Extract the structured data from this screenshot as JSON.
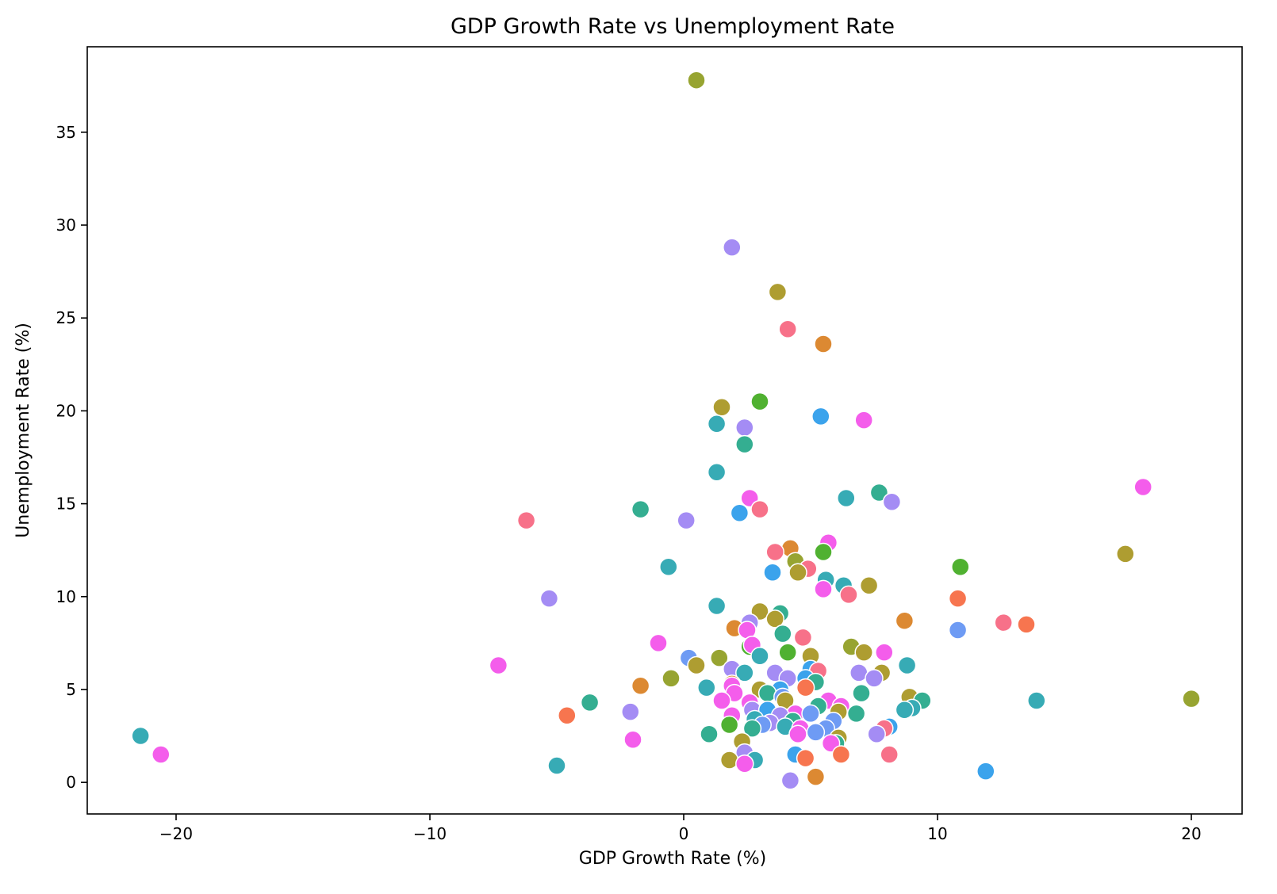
{
  "chart_data": {
    "type": "scatter",
    "title": "GDP Growth Rate vs Unemployment Rate",
    "xlabel": "GDP Growth Rate (%)",
    "ylabel": "Unemployment Rate (%)",
    "xlim": [
      -23.5,
      22.0
    ],
    "ylim": [
      -1.7,
      39.6
    ],
    "x_ticks": [
      -20,
      -10,
      0,
      10,
      20
    ],
    "x_tick_labels": [
      "−20",
      "−10",
      "0",
      "10",
      "20"
    ],
    "y_ticks": [
      0,
      5,
      10,
      15,
      20,
      25,
      30,
      35
    ],
    "y_tick_labels": [
      "0",
      "5",
      "10",
      "15",
      "20",
      "25",
      "30",
      "35"
    ],
    "grid": false,
    "legend": "none",
    "palette": [
      "#f77189",
      "#f7754f",
      "#dc8932",
      "#ae9d31",
      "#97a431",
      "#50b131",
      "#34ae91",
      "#37abb5",
      "#3ba3ec",
      "#6e9bf4",
      "#a48cf4",
      "#f45deb"
    ],
    "points": [
      {
        "x": 0.5,
        "y": 37.8,
        "c": 4
      },
      {
        "x": 1.9,
        "y": 28.8,
        "c": 10
      },
      {
        "x": 3.7,
        "y": 26.4,
        "c": 3
      },
      {
        "x": 4.1,
        "y": 24.4,
        "c": 0
      },
      {
        "x": 5.5,
        "y": 23.6,
        "c": 2
      },
      {
        "x": 1.5,
        "y": 20.2,
        "c": 3
      },
      {
        "x": 3.0,
        "y": 20.5,
        "c": 5
      },
      {
        "x": 5.4,
        "y": 19.7,
        "c": 8
      },
      {
        "x": 7.1,
        "y": 19.5,
        "c": 11
      },
      {
        "x": 1.3,
        "y": 19.3,
        "c": 7
      },
      {
        "x": 2.4,
        "y": 19.1,
        "c": 10
      },
      {
        "x": 2.4,
        "y": 18.2,
        "c": 6
      },
      {
        "x": 1.3,
        "y": 16.7,
        "c": 7
      },
      {
        "x": 18.1,
        "y": 15.9,
        "c": 11
      },
      {
        "x": 7.7,
        "y": 15.6,
        "c": 6
      },
      {
        "x": 8.2,
        "y": 15.1,
        "c": 10
      },
      {
        "x": 6.4,
        "y": 15.3,
        "c": 7
      },
      {
        "x": 2.6,
        "y": 15.3,
        "c": 11
      },
      {
        "x": 3.0,
        "y": 14.7,
        "c": 0
      },
      {
        "x": 2.2,
        "y": 14.5,
        "c": 8
      },
      {
        "x": -1.7,
        "y": 14.7,
        "c": 6
      },
      {
        "x": 0.1,
        "y": 14.1,
        "c": 10
      },
      {
        "x": -6.2,
        "y": 14.1,
        "c": 0
      },
      {
        "x": 5.7,
        "y": 12.9,
        "c": 11
      },
      {
        "x": 4.2,
        "y": 12.6,
        "c": 2
      },
      {
        "x": 3.6,
        "y": 12.4,
        "c": 0
      },
      {
        "x": 5.5,
        "y": 12.4,
        "c": 5
      },
      {
        "x": 17.4,
        "y": 12.3,
        "c": 3
      },
      {
        "x": 4.4,
        "y": 11.9,
        "c": 4
      },
      {
        "x": 10.9,
        "y": 11.6,
        "c": 5
      },
      {
        "x": -0.6,
        "y": 11.6,
        "c": 7
      },
      {
        "x": 4.9,
        "y": 11.5,
        "c": 0
      },
      {
        "x": 3.5,
        "y": 11.3,
        "c": 8
      },
      {
        "x": 4.5,
        "y": 11.3,
        "c": 3
      },
      {
        "x": 5.6,
        "y": 10.9,
        "c": 7
      },
      {
        "x": 6.3,
        "y": 10.6,
        "c": 7
      },
      {
        "x": 7.3,
        "y": 10.6,
        "c": 3
      },
      {
        "x": 5.5,
        "y": 10.4,
        "c": 11
      },
      {
        "x": 6.5,
        "y": 10.1,
        "c": 0
      },
      {
        "x": -5.3,
        "y": 9.9,
        "c": 10
      },
      {
        "x": 10.8,
        "y": 9.9,
        "c": 1
      },
      {
        "x": 1.3,
        "y": 9.5,
        "c": 7
      },
      {
        "x": 3.0,
        "y": 9.2,
        "c": 3
      },
      {
        "x": 3.8,
        "y": 9.1,
        "c": 6
      },
      {
        "x": 3.6,
        "y": 8.8,
        "c": 3
      },
      {
        "x": 8.7,
        "y": 8.7,
        "c": 2
      },
      {
        "x": 2.6,
        "y": 8.6,
        "c": 10
      },
      {
        "x": 12.6,
        "y": 8.6,
        "c": 0
      },
      {
        "x": 13.5,
        "y": 8.5,
        "c": 1
      },
      {
        "x": 2.0,
        "y": 8.3,
        "c": 2
      },
      {
        "x": 2.5,
        "y": 8.2,
        "c": 11
      },
      {
        "x": 10.8,
        "y": 8.2,
        "c": 9
      },
      {
        "x": 3.9,
        "y": 8.0,
        "c": 6
      },
      {
        "x": 4.7,
        "y": 7.8,
        "c": 0
      },
      {
        "x": -1.0,
        "y": 7.5,
        "c": 11
      },
      {
        "x": 2.6,
        "y": 7.3,
        "c": 5
      },
      {
        "x": 2.7,
        "y": 7.4,
        "c": 11
      },
      {
        "x": 6.6,
        "y": 7.3,
        "c": 4
      },
      {
        "x": 4.1,
        "y": 7.0,
        "c": 5
      },
      {
        "x": 7.1,
        "y": 7.0,
        "c": 3
      },
      {
        "x": 7.9,
        "y": 7.0,
        "c": 11
      },
      {
        "x": 3.0,
        "y": 6.8,
        "c": 7
      },
      {
        "x": 5.0,
        "y": 6.8,
        "c": 3
      },
      {
        "x": 1.4,
        "y": 6.7,
        "c": 4
      },
      {
        "x": 0.2,
        "y": 6.7,
        "c": 9
      },
      {
        "x": 0.5,
        "y": 6.3,
        "c": 3
      },
      {
        "x": 8.8,
        "y": 6.3,
        "c": 7
      },
      {
        "x": -7.3,
        "y": 6.3,
        "c": 11
      },
      {
        "x": 1.9,
        "y": 6.1,
        "c": 10
      },
      {
        "x": 5.0,
        "y": 6.1,
        "c": 8
      },
      {
        "x": 5.3,
        "y": 6.0,
        "c": 0
      },
      {
        "x": 2.4,
        "y": 5.9,
        "c": 7
      },
      {
        "x": 3.6,
        "y": 5.9,
        "c": 10
      },
      {
        "x": 6.9,
        "y": 5.9,
        "c": 10
      },
      {
        "x": 7.8,
        "y": 5.9,
        "c": 3
      },
      {
        "x": 4.1,
        "y": 5.6,
        "c": 10
      },
      {
        "x": 4.8,
        "y": 5.6,
        "c": 8
      },
      {
        "x": 7.5,
        "y": 5.6,
        "c": 10
      },
      {
        "x": -0.5,
        "y": 5.6,
        "c": 4
      },
      {
        "x": 5.2,
        "y": 5.4,
        "c": 6
      },
      {
        "x": 1.9,
        "y": 5.3,
        "c": 2
      },
      {
        "x": -1.7,
        "y": 5.2,
        "c": 2
      },
      {
        "x": 1.9,
        "y": 5.2,
        "c": 11
      },
      {
        "x": 4.8,
        "y": 5.1,
        "c": 1
      },
      {
        "x": 0.9,
        "y": 5.1,
        "c": 7
      },
      {
        "x": 3.0,
        "y": 5.0,
        "c": 3
      },
      {
        "x": 3.8,
        "y": 5.0,
        "c": 8
      },
      {
        "x": 3.3,
        "y": 4.8,
        "c": 6
      },
      {
        "x": 7.0,
        "y": 4.8,
        "c": 6
      },
      {
        "x": 2.0,
        "y": 4.8,
        "c": 11
      },
      {
        "x": 3.9,
        "y": 4.6,
        "c": 9
      },
      {
        "x": 8.9,
        "y": 4.6,
        "c": 3
      },
      {
        "x": 1.5,
        "y": 4.4,
        "c": 11
      },
      {
        "x": 4.0,
        "y": 4.4,
        "c": 3
      },
      {
        "x": 5.7,
        "y": 4.4,
        "c": 11
      },
      {
        "x": 9.4,
        "y": 4.4,
        "c": 6
      },
      {
        "x": 13.9,
        "y": 4.4,
        "c": 7
      },
      {
        "x": 20.0,
        "y": 4.5,
        "c": 4
      },
      {
        "x": -3.7,
        "y": 4.3,
        "c": 6
      },
      {
        "x": 2.6,
        "y": 4.3,
        "c": 11
      },
      {
        "x": 5.3,
        "y": 4.1,
        "c": 6
      },
      {
        "x": 6.2,
        "y": 4.1,
        "c": 11
      },
      {
        "x": 9.0,
        "y": 4.0,
        "c": 7
      },
      {
        "x": 2.7,
        "y": 3.9,
        "c": 10
      },
      {
        "x": 3.3,
        "y": 3.9,
        "c": 8
      },
      {
        "x": 6.1,
        "y": 3.8,
        "c": 3
      },
      {
        "x": 8.7,
        "y": 3.9,
        "c": 7
      },
      {
        "x": -2.1,
        "y": 3.8,
        "c": 10
      },
      {
        "x": 4.4,
        "y": 3.7,
        "c": 11
      },
      {
        "x": 5.0,
        "y": 3.7,
        "c": 9
      },
      {
        "x": 6.8,
        "y": 3.7,
        "c": 6
      },
      {
        "x": 1.9,
        "y": 3.6,
        "c": 11
      },
      {
        "x": 3.8,
        "y": 3.6,
        "c": 10
      },
      {
        "x": -4.6,
        "y": 3.6,
        "c": 1
      },
      {
        "x": 2.8,
        "y": 3.4,
        "c": 7
      },
      {
        "x": 3.4,
        "y": 3.2,
        "c": 10
      },
      {
        "x": 4.3,
        "y": 3.3,
        "c": 6
      },
      {
        "x": 5.9,
        "y": 3.3,
        "c": 9
      },
      {
        "x": 1.8,
        "y": 3.1,
        "c": 5
      },
      {
        "x": 3.1,
        "y": 3.1,
        "c": 9
      },
      {
        "x": 4.0,
        "y": 3.0,
        "c": 7
      },
      {
        "x": 2.7,
        "y": 2.9,
        "c": 6
      },
      {
        "x": 4.6,
        "y": 2.9,
        "c": 11
      },
      {
        "x": 5.6,
        "y": 2.9,
        "c": 9
      },
      {
        "x": 8.1,
        "y": 3.0,
        "c": 8
      },
      {
        "x": 7.9,
        "y": 2.9,
        "c": 0
      },
      {
        "x": 5.2,
        "y": 2.7,
        "c": 9
      },
      {
        "x": 1.0,
        "y": 2.6,
        "c": 6
      },
      {
        "x": 4.5,
        "y": 2.6,
        "c": 11
      },
      {
        "x": 7.6,
        "y": 2.6,
        "c": 10
      },
      {
        "x": 6.1,
        "y": 2.4,
        "c": 3
      },
      {
        "x": -21.4,
        "y": 2.5,
        "c": 7
      },
      {
        "x": -2.0,
        "y": 2.3,
        "c": 11
      },
      {
        "x": 2.3,
        "y": 2.2,
        "c": 3
      },
      {
        "x": 6.0,
        "y": 2.1,
        "c": 6
      },
      {
        "x": 5.8,
        "y": 2.1,
        "c": 11
      },
      {
        "x": -20.6,
        "y": 1.5,
        "c": 11
      },
      {
        "x": 2.4,
        "y": 1.6,
        "c": 10
      },
      {
        "x": 4.4,
        "y": 1.5,
        "c": 8
      },
      {
        "x": 8.1,
        "y": 1.5,
        "c": 0
      },
      {
        "x": 6.2,
        "y": 1.5,
        "c": 1
      },
      {
        "x": 4.8,
        "y": 1.3,
        "c": 1
      },
      {
        "x": 1.8,
        "y": 1.2,
        "c": 3
      },
      {
        "x": 2.8,
        "y": 1.2,
        "c": 7
      },
      {
        "x": 2.4,
        "y": 1.0,
        "c": 11
      },
      {
        "x": -5.0,
        "y": 0.9,
        "c": 7
      },
      {
        "x": 11.9,
        "y": 0.6,
        "c": 8
      },
      {
        "x": 5.2,
        "y": 0.3,
        "c": 2
      },
      {
        "x": 4.2,
        "y": 0.1,
        "c": 10
      }
    ]
  }
}
